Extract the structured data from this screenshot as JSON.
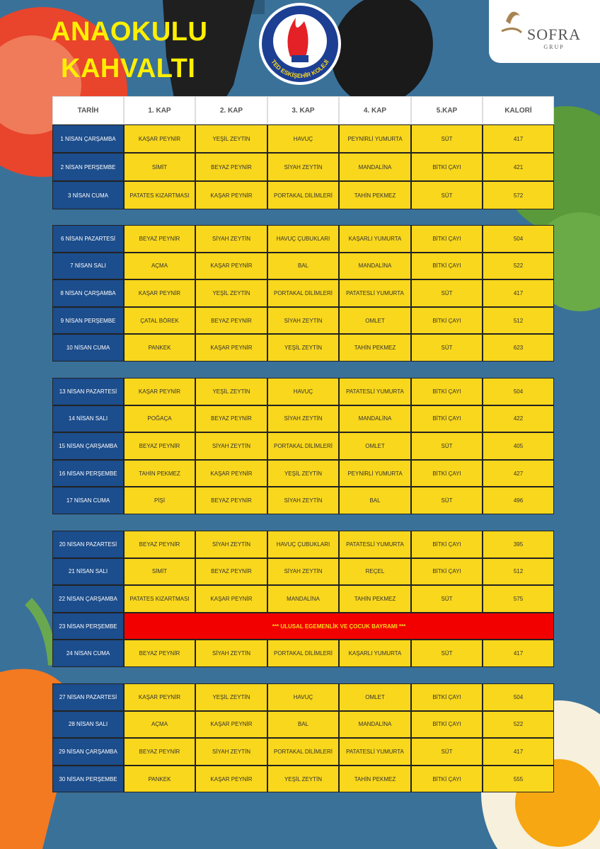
{
  "header": {
    "title_lines": [
      "ANAOKULU",
      "KAHVALTI"
    ],
    "school": "TED ESKİŞEHİR KOLEJİ",
    "brand": "SOFRA",
    "brand_sub": "GRUP"
  },
  "table": {
    "columns": [
      "TARİH",
      "1. KAP",
      "2. KAP",
      "3. KAP",
      "4. KAP",
      "5.KAP",
      "KALORİ"
    ],
    "weeks": [
      [
        [
          "1 NİSAN ÇARŞAMBA",
          "KAŞAR PEYNİR",
          "YEŞİL ZEYTİN",
          "HAVUÇ",
          "PEYNİRLİ YUMURTA",
          "SÜT",
          417
        ],
        [
          "2 NİSAN PERŞEMBE",
          "SİMİT",
          "BEYAZ PEYNİR",
          "SİYAH ZEYTİN",
          "MANDALİNA",
          "BİTKİ ÇAYI",
          421
        ],
        [
          "3 NİSAN CUMA",
          "PATATES KIZARTMASI",
          "KAŞAR PEYNİR",
          "PORTAKAL DİLİMLERİ",
          "TAHİN PEKMEZ",
          "SÜT",
          572
        ]
      ],
      [
        [
          "6 NİSAN PAZARTESİ",
          "BEYAZ PEYNİR",
          "SİYAH ZEYTİN",
          "HAVUÇ ÇUBUKLARI",
          "KAŞARLI YUMURTA",
          "BİTKİ ÇAYI",
          504
        ],
        [
          "7 NİSAN SALI",
          "AÇMA",
          "KAŞAR PEYNİR",
          "BAL",
          "MANDALİNA",
          "BİTKİ ÇAYI",
          522
        ],
        [
          "8 NİSAN ÇARŞAMBA",
          "KAŞAR PEYNİR",
          "YEŞİL ZEYTİN",
          "PORTAKAL DİLİMLERİ",
          "PATATESLİ YUMURTA",
          "SÜT",
          417
        ],
        [
          "9 NİSAN PERŞEMBE",
          "ÇATAL BÖREK",
          "BEYAZ PEYNİR",
          "SİYAH ZEYTİN",
          "OMLET",
          "BİTKİ ÇAYI",
          512
        ],
        [
          "10 NİSAN CUMA",
          "PANKEK",
          "KAŞAR PEYNİR",
          "YEŞİL ZEYTİN",
          "TAHİN PEKMEZ",
          "SÜT",
          623
        ]
      ],
      [
        [
          "13 NİSAN PAZARTESİ",
          "KAŞAR PEYNİR",
          "YEŞİL ZEYTİN",
          "HAVUÇ",
          "PATATESLİ YUMURTA",
          "BİTKİ ÇAYI",
          504
        ],
        [
          "14 NİSAN SALI",
          "POĞAÇA",
          "BEYAZ PEYNİR",
          "SİYAH ZEYTİN",
          "MANDALİNA",
          "BİTKİ ÇAYI",
          422
        ],
        [
          "15 NİSAN ÇARŞAMBA",
          "BEYAZ PEYNİR",
          "SİYAH ZEYTİN",
          "PORTAKAL DİLİMLERİ",
          "OMLET",
          "SÜT",
          405
        ],
        [
          "16 NİSAN PERŞEMBE",
          "TAHİN PEKMEZ",
          "KAŞAR PEYNİR",
          "YEŞİL ZEYTİN",
          "PEYNİRLİ YUMURTA",
          "BİTKİ ÇAYI",
          427
        ],
        [
          "17 NİSAN CUMA",
          "PİŞİ",
          "BEYAZ PEYNİR",
          "SİYAH ZEYTİN",
          "BAL",
          "SÜT",
          496
        ]
      ],
      [
        [
          "20 NİSAN PAZARTESİ",
          "BEYAZ PEYNİR",
          "SİYAH ZEYTİN",
          "HAVUÇ ÇUBUKLARI",
          "PATATESLİ YUMURTA",
          "BİTKİ ÇAYI",
          395
        ],
        [
          "21 NİSAN SALI",
          "SİMİT",
          "BEYAZ PEYNİR",
          "SİYAH ZEYTİN",
          "REÇEL",
          "BİTKİ ÇAYI",
          512
        ],
        [
          "22 NİSAN ÇARŞAMBA",
          "PATATES KIZARTMASI",
          "KAŞAR PEYNİR",
          "MANDALİNA",
          "TAHİN PEKMEZ",
          "SÜT",
          575
        ],
        [
          "23 NİSAN PERŞEMBE",
          "*** ULUSAL EGEMENLİK VE ÇOCUK BAYRAMI ***"
        ],
        [
          "24 NİSAN CUMA",
          "BEYAZ PEYNİR",
          "SİYAH ZEYTİN",
          "PORTAKAL DİLİMLERİ",
          "KAŞARLI YUMURTA",
          "SÜT",
          417
        ]
      ],
      [
        [
          "27 NİSAN PAZARTESİ",
          "KAŞAR PEYNİR",
          "YEŞİL ZEYTİN",
          "HAVUÇ",
          "OMLET",
          "BİTKİ ÇAYI",
          504
        ],
        [
          "28 NİSAN SALI",
          "AÇMA",
          "KAŞAR PEYNİR",
          "BAL",
          "MANDALİNA",
          "BİTKİ ÇAYI",
          522
        ],
        [
          "29 NİSAN ÇARŞAMBA",
          "BEYAZ PEYNİR",
          "SİYAH ZEYTİN",
          "PORTAKAL DİLİMLERİ",
          "PATATESLİ YUMURTA",
          "SÜT",
          417
        ],
        [
          "30 NİSAN PERŞEMBE",
          "PANKEK",
          "KAŞAR PEYNİR",
          "YEŞİL ZEYTİN",
          "TAHİN PEKMEZ",
          "BİTKİ ÇAYI",
          555
        ]
      ]
    ]
  }
}
